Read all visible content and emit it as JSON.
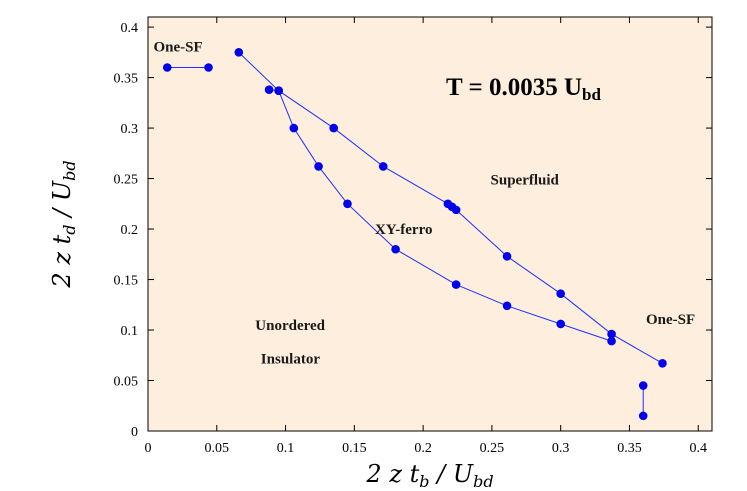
{
  "chart_data": {
    "type": "scatter",
    "xlabel": "2 z t_b / U_bd",
    "ylabel": "2 z t_d / U_bd",
    "xlim": [
      0,
      0.41
    ],
    "ylim": [
      0,
      0.41
    ],
    "x_ticks": [
      "0",
      "0.05",
      "0.1",
      "0.15",
      "0.2",
      "0.25",
      "0.3",
      "0.35",
      "0.4"
    ],
    "y_ticks": [
      "0",
      "0.05",
      "0.1",
      "0.15",
      "0.2",
      "0.25",
      "0.3",
      "0.35",
      "0.4"
    ],
    "grid": false,
    "plot_bg": "#fdeedd",
    "marker_color": "#0000ee",
    "line_color": "#1f2fff",
    "temperature_label": {
      "main": "T = 0.0035 U",
      "subscript": "bd"
    },
    "region_labels": [
      {
        "text": "One-SF",
        "x": 0.004,
        "y": 0.376
      },
      {
        "text": "Superfluid",
        "x": 0.249,
        "y": 0.244
      },
      {
        "text": "XY-ferro",
        "x": 0.165,
        "y": 0.195
      },
      {
        "text": "Unordered",
        "x": 0.078,
        "y": 0.1
      },
      {
        "text": "Insulator",
        "x": 0.082,
        "y": 0.067
      },
      {
        "text": "One-SF",
        "x": 0.362,
        "y": 0.106
      }
    ],
    "series": [
      {
        "x": [
          0.014,
          0.044
        ],
        "y": [
          0.36,
          0.36
        ]
      },
      {
        "x": [
          0.066,
          0.095,
          0.135,
          0.171,
          0.218,
          0.221,
          0.224,
          0.261,
          0.3,
          0.337,
          0.374
        ],
        "y": [
          0.375,
          0.337,
          0.3,
          0.262,
          0.225,
          0.222,
          0.219,
          0.173,
          0.136,
          0.096,
          0.067
        ]
      },
      {
        "x": [
          0.337,
          0.3,
          0.261,
          0.224,
          0.18,
          0.145,
          0.124,
          0.106,
          0.095,
          0.088
        ],
        "y": [
          0.089,
          0.106,
          0.124,
          0.145,
          0.18,
          0.225,
          0.262,
          0.3,
          0.337,
          0.338
        ]
      },
      {
        "x": [
          0.36,
          0.36
        ],
        "y": [
          0.045,
          0.015
        ]
      }
    ]
  }
}
